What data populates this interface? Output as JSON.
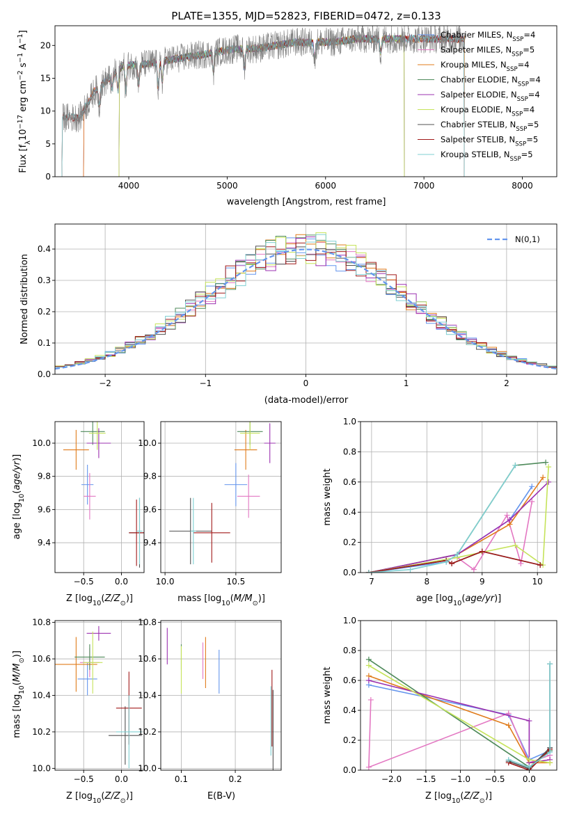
{
  "colors": {
    "Chabrier MILES": "#6495ed",
    "Salpeter MILES": "#e377c2",
    "Kroupa MILES": "#e07b1a",
    "Chabrier ELODIE": "#4e8a5a",
    "Salpeter ELODIE": "#9b30b0",
    "Kroupa ELODIE": "#c5e35a",
    "Chabrier STELIB": "#505050",
    "Salpeter STELIB": "#a01818",
    "Kroupa STELIB": "#7fcfd2"
  },
  "chart_data": [
    {
      "id": "spectrum",
      "type": "line",
      "title": "PLATE=1355, MJD=52823, FIBERID=0472, z=0.133",
      "xlabel": "wavelength [Angstrom, rest frame]",
      "ylabel": "Flux [f_λ 10^-17 erg cm^-2 s^-1 A^-1]",
      "xlim": [
        3250,
        8350
      ],
      "ylim": [
        0,
        23
      ],
      "xticks": [
        4000,
        5000,
        6000,
        7000,
        8000
      ],
      "yticks": [
        0,
        5,
        10,
        15,
        20
      ],
      "legend": "top-right",
      "legend_entries": [
        {
          "name": "Chabrier MILES",
          "nssp": "4"
        },
        {
          "name": "Salpeter MILES",
          "nssp": "5"
        },
        {
          "name": "Kroupa MILES",
          "nssp": "4"
        },
        {
          "name": "Chabrier ELODIE",
          "nssp": "4"
        },
        {
          "name": "Salpeter ELODIE",
          "nssp": "4"
        },
        {
          "name": "Kroupa ELODIE",
          "nssp": "4"
        },
        {
          "name": "Chabrier STELIB",
          "nssp": "5"
        },
        {
          "name": "Salpeter STELIB",
          "nssp": "5"
        },
        {
          "name": "Kroupa STELIB",
          "nssp": "5"
        }
      ],
      "continuum": {
        "x": [
          3350,
          3500,
          3650,
          3800,
          3950,
          4100,
          4300,
          4500,
          4700,
          4900,
          5100,
          5300,
          5500,
          5700,
          5900,
          6100,
          6300,
          6500,
          6700,
          6900,
          7100,
          7300,
          7450
        ],
        "y": [
          9,
          9,
          13,
          15,
          17,
          17,
          17.5,
          18,
          18.5,
          19,
          19.5,
          19.5,
          20,
          20.5,
          20.5,
          20.5,
          21,
          21,
          21,
          21,
          21,
          21,
          21
        ]
      },
      "model_range": {
        "Chabrier MILES": [
          3540,
          7410
        ],
        "Salpeter MILES": [
          3540,
          7410
        ],
        "Kroupa MILES": [
          3540,
          7410
        ],
        "Chabrier ELODIE": [
          3900,
          6800
        ],
        "Salpeter ELODIE": [
          3900,
          6800
        ],
        "Kroupa ELODIE": [
          3900,
          6800
        ],
        "Chabrier STELIB": [
          3320,
          7410
        ],
        "Salpeter STELIB": [
          3320,
          7410
        ],
        "Kroupa STELIB": [
          3320,
          7410
        ]
      }
    },
    {
      "id": "residuals",
      "type": "line",
      "xlabel": "(data-model)/error",
      "ylabel": "Normed distribution",
      "xlim": [
        -2.5,
        2.5
      ],
      "ylim": [
        0,
        0.48
      ],
      "xticks": [
        -2,
        -1,
        0,
        1,
        2
      ],
      "yticks": [
        0.0,
        0.1,
        0.2,
        0.3,
        0.4
      ],
      "legend": "top-right",
      "legend_label": "N(0,1)",
      "gaussian_color": "#6495ed",
      "bin_width": 0.1
    },
    {
      "id": "age-vs-Z",
      "type": "scatter",
      "xlabel": "Z [log10(Z/Z⊙)]",
      "ylabel": "age [log10(age/yr)]",
      "xlim": [
        -0.88,
        0.3
      ],
      "ylim": [
        9.22,
        10.13
      ],
      "xticks": [
        -0.5,
        0.0
      ],
      "yticks": [
        9.4,
        9.6,
        9.8,
        10.0
      ],
      "points": [
        {
          "series": "Chabrier MILES",
          "x": -0.45,
          "y": 9.75,
          "xerr": 0.08,
          "yerr": 0.12
        },
        {
          "series": "Salpeter MILES",
          "x": -0.42,
          "y": 9.68,
          "xerr": 0.08,
          "yerr": 0.14
        },
        {
          "series": "Kroupa MILES",
          "x": -0.6,
          "y": 9.96,
          "xerr": 0.17,
          "yerr": 0.12
        },
        {
          "series": "Chabrier ELODIE",
          "x": -0.38,
          "y": 10.07,
          "xerr": 0.16,
          "yerr": 0.08
        },
        {
          "series": "Salpeter ELODIE",
          "x": -0.3,
          "y": 10.0,
          "xerr": 0.16,
          "yerr": 0.09
        },
        {
          "series": "Kroupa ELODIE",
          "x": -0.32,
          "y": 10.06,
          "xerr": 0.11,
          "yerr": 0.1
        },
        {
          "series": "Chabrier STELIB",
          "x": 0.24,
          "y": 9.46,
          "xerr": 0.14,
          "yerr": 0.21
        },
        {
          "series": "Salpeter STELIB",
          "x": 0.2,
          "y": 9.46,
          "xerr": 0.1,
          "yerr": 0.2
        },
        {
          "series": "Kroupa STELIB",
          "x": 0.24,
          "y": 9.47,
          "xerr": 0.04,
          "yerr": 0.2
        }
      ]
    },
    {
      "id": "age-vs-mass",
      "type": "scatter",
      "xlabel": "mass [log10(M/M⊙)]",
      "ylabel": "",
      "xlim": [
        9.97,
        10.82
      ],
      "ylim": [
        9.22,
        10.13
      ],
      "xticks": [
        10.0,
        10.5
      ],
      "yticks": [
        9.4,
        9.6,
        9.8,
        10.0
      ],
      "points": [
        {
          "series": "Chabrier MILES",
          "x": 10.5,
          "y": 9.75,
          "xerr": 0.08,
          "yerr": 0.13
        },
        {
          "series": "Salpeter MILES",
          "x": 10.59,
          "y": 9.68,
          "xerr": 0.08,
          "yerr": 0.13
        },
        {
          "series": "Kroupa MILES",
          "x": 10.57,
          "y": 9.96,
          "xerr": 0.08,
          "yerr": 0.12
        },
        {
          "series": "Chabrier ELODIE",
          "x": 10.6,
          "y": 10.07,
          "xerr": 0.09,
          "yerr": 0.08
        },
        {
          "series": "Salpeter ELODIE",
          "x": 10.74,
          "y": 10.0,
          "xerr": 0.04,
          "yerr": 0.12
        },
        {
          "series": "Kroupa ELODIE",
          "x": 10.6,
          "y": 10.06,
          "xerr": 0.07,
          "yerr": 0.1
        },
        {
          "series": "Chabrier STELIB",
          "x": 10.18,
          "y": 9.47,
          "xerr": 0.15,
          "yerr": 0.2
        },
        {
          "series": "Salpeter STELIB",
          "x": 10.33,
          "y": 9.46,
          "xerr": 0.13,
          "yerr": 0.18
        },
        {
          "series": "Kroupa STELIB",
          "x": 10.2,
          "y": 9.47,
          "xerr": 0.02,
          "yerr": 0.2
        }
      ]
    },
    {
      "id": "weight-vs-age",
      "type": "line",
      "xlabel": "age [log10(age/yr)]",
      "ylabel": "mass weight",
      "xlim": [
        6.8,
        10.35
      ],
      "ylim": [
        0,
        1
      ],
      "xticks": [
        7,
        8,
        9,
        10
      ],
      "yticks": [
        0.0,
        0.2,
        0.4,
        0.6,
        0.8,
        1.0
      ],
      "series": [
        {
          "name": "Chabrier MILES",
          "x": [
            6.95,
            8.35,
            8.55,
            9.5,
            9.9
          ],
          "y": [
            0.0,
            0.07,
            0.12,
            0.35,
            0.57
          ]
        },
        {
          "name": "Salpeter MILES",
          "x": [
            6.95,
            8.55,
            8.85,
            9.45,
            9.7,
            9.9
          ],
          "y": [
            0.0,
            0.1,
            0.02,
            0.38,
            0.06,
            0.47
          ]
        },
        {
          "name": "Kroupa MILES",
          "x": [
            6.95,
            8.55,
            9.5,
            10.1
          ],
          "y": [
            0.0,
            0.12,
            0.32,
            0.63
          ]
        },
        {
          "name": "Chabrier ELODIE",
          "x": [
            6.95,
            8.55,
            9.6,
            10.15
          ],
          "y": [
            0.0,
            0.12,
            0.71,
            0.73
          ]
        },
        {
          "name": "Salpeter ELODIE",
          "x": [
            6.95,
            8.55,
            9.5,
            10.2
          ],
          "y": [
            0.0,
            0.12,
            0.35,
            0.6
          ]
        },
        {
          "name": "Kroupa ELODIE",
          "x": [
            6.95,
            8.55,
            9.6,
            10.1,
            10.2
          ],
          "y": [
            0.0,
            0.1,
            0.18,
            0.05,
            0.7
          ]
        },
        {
          "name": "Chabrier STELIB",
          "x": [
            6.95,
            8.35,
            8.45,
            9.0,
            10.05
          ],
          "y": [
            0.0,
            0.08,
            0.06,
            0.14,
            0.05
          ]
        },
        {
          "name": "Salpeter STELIB",
          "x": [
            6.95,
            8.35,
            8.45,
            9.0,
            10.05
          ],
          "y": [
            0.0,
            0.08,
            0.06,
            0.14,
            0.05
          ]
        },
        {
          "name": "Kroupa STELIB",
          "x": [
            6.95,
            7.7,
            8.35,
            8.55,
            9.6
          ],
          "y": [
            0.0,
            0.02,
            0.07,
            0.12,
            0.71
          ]
        }
      ]
    },
    {
      "id": "mass-vs-Z",
      "type": "scatter",
      "xlabel": "Z [log10(Z/Z⊙)]",
      "ylabel": "mass [log10(M/M⊙)]",
      "xlim": [
        -0.88,
        0.3
      ],
      "ylim": [
        9.99,
        10.81
      ],
      "xticks": [
        -0.5,
        0.0
      ],
      "yticks": [
        10.0,
        10.2,
        10.4,
        10.6,
        10.8
      ],
      "points": [
        {
          "series": "Chabrier MILES",
          "x": -0.45,
          "y": 10.49,
          "xerr": 0.13,
          "yerr": 0.09
        },
        {
          "series": "Salpeter MILES",
          "x": -0.42,
          "y": 10.58,
          "xerr": 0.13,
          "yerr": 0.08
        },
        {
          "series": "Kroupa MILES",
          "x": -0.6,
          "y": 10.57,
          "xerr": 0.28,
          "yerr": 0.15
        },
        {
          "series": "Chabrier ELODIE",
          "x": -0.42,
          "y": 10.61,
          "xerr": 0.2,
          "yerr": 0.07
        },
        {
          "series": "Salpeter ELODIE",
          "x": -0.3,
          "y": 10.74,
          "xerr": 0.16,
          "yerr": 0.04
        },
        {
          "series": "Kroupa ELODIE",
          "x": -0.38,
          "y": 10.58,
          "xerr": 0.13,
          "yerr": 0.17
        },
        {
          "series": "Chabrier STELIB",
          "x": 0.05,
          "y": 10.18,
          "xerr": 0.22,
          "yerr": 0.16
        },
        {
          "series": "Salpeter STELIB",
          "x": 0.1,
          "y": 10.33,
          "xerr": 0.17,
          "yerr": 0.2
        },
        {
          "series": "Kroupa STELIB",
          "x": 0.1,
          "y": 10.2,
          "xerr": 0.17,
          "yerr": 0.2
        }
      ]
    },
    {
      "id": "mass-vs-EBV",
      "type": "scatter",
      "xlabel": "E(B-V)",
      "ylabel": "",
      "xlim": [
        0.062,
        0.285
      ],
      "ylim": [
        9.99,
        10.81
      ],
      "xticks": [
        0.1,
        0.2
      ],
      "yticks": [
        10.0,
        10.2,
        10.4,
        10.6,
        10.8
      ],
      "points": [
        {
          "series": "Chabrier MILES",
          "x": 0.17,
          "y": 10.53,
          "xerr": 0.0,
          "yerr": 0.12
        },
        {
          "series": "Salpeter MILES",
          "x": 0.14,
          "y": 10.59,
          "xerr": 0.0,
          "yerr": 0.1
        },
        {
          "series": "Kroupa MILES",
          "x": 0.145,
          "y": 10.58,
          "xerr": 0.0,
          "yerr": 0.14
        },
        {
          "series": "Chabrier ELODIE",
          "x": 0.1,
          "y": 10.61,
          "xerr": 0.0,
          "yerr": 0.07
        },
        {
          "series": "Salpeter ELODIE",
          "x": 0.074,
          "y": 10.67,
          "xerr": 0.0,
          "yerr": 0.1
        },
        {
          "series": "Kroupa ELODIE",
          "x": 0.1,
          "y": 10.54,
          "xerr": 0.0,
          "yerr": 0.13
        },
        {
          "series": "Chabrier STELIB",
          "x": 0.27,
          "y": 10.2,
          "xerr": 0.0,
          "yerr": 0.23
        },
        {
          "series": "Salpeter STELIB",
          "x": 0.268,
          "y": 10.33,
          "xerr": 0.0,
          "yerr": 0.21
        },
        {
          "series": "Kroupa STELIB",
          "x": 0.266,
          "y": 10.26,
          "xerr": 0.0,
          "yerr": 0.19
        }
      ]
    },
    {
      "id": "weight-vs-Z",
      "type": "line",
      "xlabel": "Z [log10(Z/Z⊙)]",
      "ylabel": "mass weight",
      "xlim": [
        -2.45,
        0.4
      ],
      "ylim": [
        0,
        1
      ],
      "xticks": [
        -2.0,
        -1.5,
        -1.0,
        -0.5,
        0.0
      ],
      "yticks": [
        0.0,
        0.2,
        0.4,
        0.6,
        0.8,
        1.0
      ],
      "series": [
        {
          "name": "Chabrier MILES",
          "x": [
            -2.33,
            -0.3,
            0.0,
            0.3
          ],
          "y": [
            0.57,
            0.37,
            0.07,
            0.13
          ]
        },
        {
          "name": "Salpeter MILES",
          "x": [
            -2.3,
            -2.33,
            -0.3,
            0.0,
            0.3
          ],
          "y": [
            0.47,
            0.02,
            0.38,
            0.05,
            0.1
          ]
        },
        {
          "name": "Kroupa MILES",
          "x": [
            -2.33,
            -0.3,
            0.0,
            0.3
          ],
          "y": [
            0.63,
            0.3,
            0.05,
            0.05
          ]
        },
        {
          "name": "Chabrier ELODIE",
          "x": [
            -2.33,
            0.0,
            0.3
          ],
          "y": [
            0.74,
            0.02,
            0.13
          ]
        },
        {
          "name": "Salpeter ELODIE",
          "x": [
            -2.33,
            0.0,
            0.0,
            0.3
          ],
          "y": [
            0.6,
            0.33,
            0.05,
            0.07
          ]
        },
        {
          "name": "Kroupa ELODIE",
          "x": [
            -2.33,
            0.0,
            0.3
          ],
          "y": [
            0.7,
            0.07,
            0.05
          ]
        },
        {
          "name": "Chabrier STELIB",
          "x": [
            -0.3,
            0.0,
            0.3,
            0.3
          ],
          "y": [
            0.06,
            0.01,
            0.15,
            0.71
          ]
        },
        {
          "name": "Salpeter STELIB",
          "x": [
            -0.3,
            0.0,
            0.3
          ],
          "y": [
            0.05,
            0.0,
            0.14
          ]
        },
        {
          "name": "Kroupa STELIB",
          "x": [
            -0.3,
            0.0,
            0.3,
            0.3
          ],
          "y": [
            0.07,
            0.02,
            0.12,
            0.71
          ]
        }
      ]
    }
  ]
}
